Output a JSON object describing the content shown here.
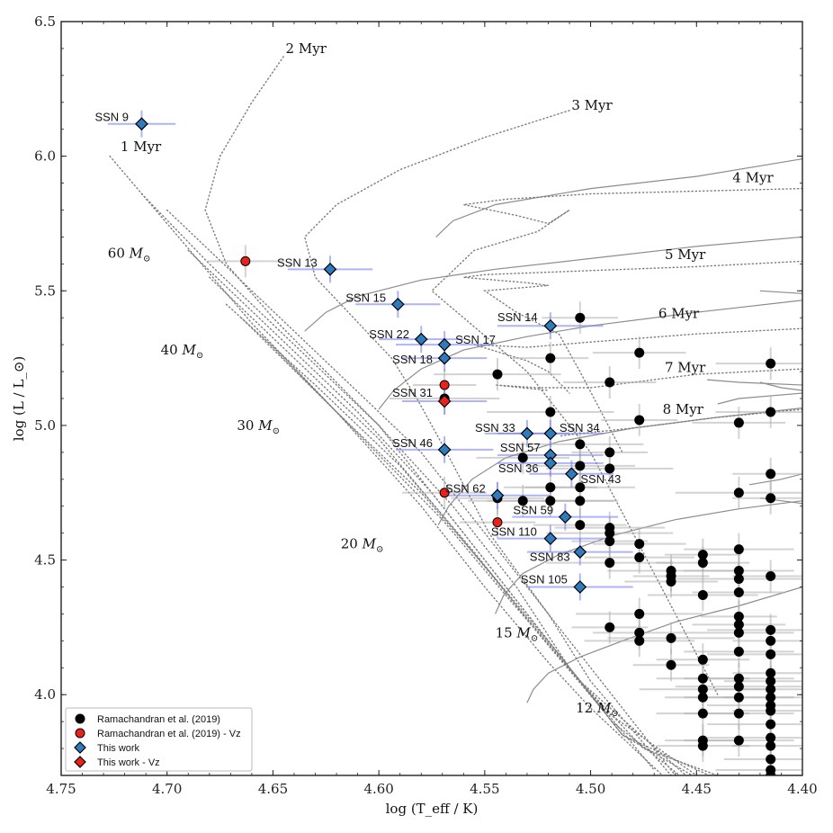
{
  "chart_data": {
    "type": "scatter",
    "xlabel": "log (T_eff / K)",
    "ylabel": "log (L / L_⊙)",
    "xlim": [
      4.75,
      4.4
    ],
    "ylim": [
      3.7,
      6.5
    ],
    "x_ticks": [
      "4.75",
      "4.70",
      "4.65",
      "4.60",
      "4.55",
      "4.50",
      "4.45",
      "4.40"
    ],
    "x_tick_values": [
      4.75,
      4.7,
      4.65,
      4.6,
      4.55,
      4.5,
      4.45,
      4.4
    ],
    "y_ticks": [
      "4.0",
      "4.5",
      "5.0",
      "5.5",
      "6.0",
      "6.5"
    ],
    "y_tick_values": [
      4.0,
      4.5,
      5.0,
      5.5,
      6.0,
      6.5
    ],
    "legend": [
      {
        "label": "Ramachandran et al. (2019)",
        "marker": "circle",
        "color": "#000000"
      },
      {
        "label": "Ramachandran et al. (2019) - Vz",
        "marker": "circle",
        "color": "#e8231b"
      },
      {
        "label": "This work",
        "marker": "diamond",
        "color": "#2f7bbd"
      },
      {
        "label": "This work - Vz",
        "marker": "diamond",
        "color": "#e8231b"
      }
    ],
    "mass_tracks": [
      {
        "label": "60",
        "start": [
          4.573,
          5.7
        ],
        "end_label": [
          4.728,
          5.64
        ]
      },
      {
        "label": "40",
        "start": [
          4.635,
          5.35
        ],
        "end_label": [
          4.703,
          5.28
        ]
      },
      {
        "label": "30",
        "start": [
          4.6,
          5.06
        ],
        "end_label": [
          4.667,
          5.0
        ]
      },
      {
        "label": "20",
        "start": [
          4.572,
          4.63
        ],
        "end_label": [
          4.618,
          4.56
        ]
      },
      {
        "label": "15",
        "start": [
          4.545,
          4.3
        ],
        "end_label": [
          4.545,
          4.23
        ]
      },
      {
        "label": "12",
        "start": [
          4.53,
          3.97
        ],
        "end_label": [
          4.507,
          3.95
        ]
      }
    ],
    "isochrone_labels": [
      {
        "label": "1 Myr",
        "x": 4.722,
        "y": 6.035
      },
      {
        "label": "2 Myr",
        "x": 4.644,
        "y": 6.4
      },
      {
        "label": "3 Myr",
        "x": 4.509,
        "y": 6.19
      },
      {
        "label": "4 Myr",
        "x": 4.433,
        "y": 5.92
      },
      {
        "label": "5 Myr",
        "x": 4.465,
        "y": 5.635
      },
      {
        "label": "6 Myr",
        "x": 4.468,
        "y": 5.415
      },
      {
        "label": "7 Myr",
        "x": 4.465,
        "y": 5.215
      },
      {
        "label": "8 Myr",
        "x": 4.466,
        "y": 5.06
      }
    ],
    "this_work": [
      {
        "name": "SSN 9",
        "x": 4.712,
        "y": 6.12,
        "xerr": 0.016,
        "yerr": 0.05,
        "vz": false
      },
      {
        "name": "SSN 13",
        "x": 4.623,
        "y": 5.58,
        "xerr": 0.02,
        "yerr": 0.05,
        "vz": false
      },
      {
        "name": "SSN 15",
        "x": 4.591,
        "y": 5.45,
        "xerr": 0.02,
        "yerr": 0.05,
        "vz": false
      },
      {
        "name": "SSN 14",
        "x": 4.519,
        "y": 5.37,
        "xerr": 0.025,
        "yerr": 0.05,
        "vz": false
      },
      {
        "name": "SSN 22",
        "x": 4.58,
        "y": 5.32,
        "xerr": 0.02,
        "yerr": 0.05,
        "vz": false
      },
      {
        "name": "SSN 17",
        "x": 4.569,
        "y": 5.3,
        "xerr": 0.023,
        "yerr": 0.05,
        "vz": false
      },
      {
        "name": "SSN 18",
        "x": 4.569,
        "y": 5.25,
        "xerr": 0.02,
        "yerr": 0.05,
        "vz": false
      },
      {
        "name": "SSN 31",
        "x": 4.569,
        "y": 5.09,
        "xerr": 0.02,
        "yerr": 0.05,
        "vz": true
      },
      {
        "name": "SSN 33",
        "x": 4.53,
        "y": 4.97,
        "xerr": 0.02,
        "yerr": 0.05,
        "vz": false
      },
      {
        "name": "SSN 34",
        "x": 4.519,
        "y": 4.97,
        "xerr": 0.025,
        "yerr": 0.05,
        "vz": false
      },
      {
        "name": "SSN 46",
        "x": 4.569,
        "y": 4.91,
        "xerr": 0.023,
        "yerr": 0.05,
        "vz": false
      },
      {
        "name": "SSN 57",
        "x": 4.519,
        "y": 4.89,
        "xerr": 0.025,
        "yerr": 0.05,
        "vz": false
      },
      {
        "name": "SSN 36",
        "x": 4.519,
        "y": 4.86,
        "xerr": 0.025,
        "yerr": 0.05,
        "vz": false
      },
      {
        "name": "SSN 43",
        "x": 4.509,
        "y": 4.82,
        "xerr": 0.02,
        "yerr": 0.05,
        "vz": false
      },
      {
        "name": "SSN 62",
        "x": 4.544,
        "y": 4.74,
        "xerr": 0.025,
        "yerr": 0.05,
        "vz": false
      },
      {
        "name": "SSN 59",
        "x": 4.512,
        "y": 4.66,
        "xerr": 0.025,
        "yerr": 0.05,
        "vz": false
      },
      {
        "name": "SSN 110",
        "x": 4.519,
        "y": 4.58,
        "xerr": 0.025,
        "yerr": 0.05,
        "vz": false
      },
      {
        "name": "SSN 83",
        "x": 4.505,
        "y": 4.53,
        "xerr": 0.025,
        "yerr": 0.05,
        "vz": false
      },
      {
        "name": "SSN 105",
        "x": 4.505,
        "y": 4.4,
        "xerr": 0.025,
        "yerr": 0.05,
        "vz": false
      }
    ],
    "ramachandran_vz": [
      {
        "x": 4.663,
        "y": 5.61,
        "xerr": 0.018
      },
      {
        "x": 4.569,
        "y": 5.15,
        "xerr": 0.015
      },
      {
        "x": 4.569,
        "y": 4.75,
        "xerr": 0.02
      },
      {
        "x": 4.544,
        "y": 4.64,
        "xerr": 0.018
      }
    ],
    "ramachandran": [
      [
        4.505,
        5.4
      ],
      [
        4.477,
        5.27
      ],
      [
        4.415,
        5.23
      ],
      [
        4.544,
        5.19
      ],
      [
        4.519,
        5.25
      ],
      [
        4.491,
        5.16
      ],
      [
        4.569,
        5.1
      ],
      [
        4.519,
        5.05
      ],
      [
        4.477,
        5.02
      ],
      [
        4.43,
        5.01
      ],
      [
        4.415,
        5.05
      ],
      [
        4.505,
        4.93
      ],
      [
        4.491,
        4.9
      ],
      [
        4.532,
        4.88
      ],
      [
        4.505,
        4.85
      ],
      [
        4.491,
        4.84
      ],
      [
        4.415,
        4.82
      ],
      [
        4.519,
        4.77
      ],
      [
        4.505,
        4.77
      ],
      [
        4.43,
        4.75
      ],
      [
        4.415,
        4.73
      ],
      [
        4.544,
        4.73
      ],
      [
        4.532,
        4.72
      ],
      [
        4.519,
        4.72
      ],
      [
        4.505,
        4.72
      ],
      [
        4.505,
        4.63
      ],
      [
        4.491,
        4.62
      ],
      [
        4.491,
        4.6
      ],
      [
        4.491,
        4.57
      ],
      [
        4.477,
        4.56
      ],
      [
        4.477,
        4.51
      ],
      [
        4.491,
        4.49
      ],
      [
        4.447,
        4.52
      ],
      [
        4.447,
        4.49
      ],
      [
        4.43,
        4.54
      ],
      [
        4.462,
        4.46
      ],
      [
        4.462,
        4.44
      ],
      [
        4.462,
        4.42
      ],
      [
        4.43,
        4.46
      ],
      [
        4.43,
        4.43
      ],
      [
        4.415,
        4.44
      ],
      [
        4.43,
        4.38
      ],
      [
        4.447,
        4.37
      ],
      [
        4.477,
        4.3
      ],
      [
        4.491,
        4.25
      ],
      [
        4.477,
        4.23
      ],
      [
        4.477,
        4.2
      ],
      [
        4.462,
        4.21
      ],
      [
        4.43,
        4.29
      ],
      [
        4.43,
        4.26
      ],
      [
        4.43,
        4.23
      ],
      [
        4.415,
        4.24
      ],
      [
        4.415,
        4.2
      ],
      [
        4.447,
        4.13
      ],
      [
        4.43,
        4.16
      ],
      [
        4.415,
        4.15
      ],
      [
        4.462,
        4.11
      ],
      [
        4.447,
        4.06
      ],
      [
        4.43,
        4.06
      ],
      [
        4.43,
        4.03
      ],
      [
        4.415,
        4.08
      ],
      [
        4.415,
        4.05
      ],
      [
        4.415,
        4.02
      ],
      [
        4.447,
        4.02
      ],
      [
        4.447,
        3.99
      ],
      [
        4.415,
        3.99
      ],
      [
        4.43,
        3.99
      ],
      [
        4.415,
        3.96
      ],
      [
        4.415,
        3.94
      ],
      [
        4.447,
        3.93
      ],
      [
        4.43,
        3.93
      ],
      [
        4.415,
        3.89
      ],
      [
        4.447,
        3.83
      ],
      [
        4.447,
        3.81
      ],
      [
        4.43,
        3.83
      ],
      [
        4.415,
        3.84
      ],
      [
        4.415,
        3.81
      ],
      [
        4.415,
        3.76
      ],
      [
        4.415,
        3.72
      ],
      [
        4.415,
        3.7
      ]
    ]
  }
}
